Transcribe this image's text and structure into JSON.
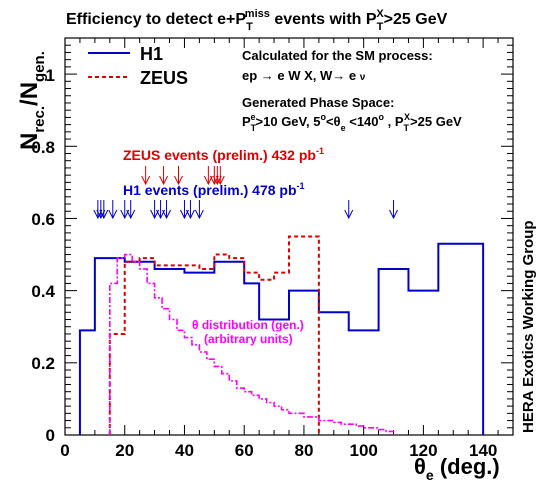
{
  "chart_data": {
    "type": "histogram",
    "title": {
      "pre": "Efficiency to detect e+P",
      "pre_sub": "T",
      "pre_sup": "miss",
      "mid": " events with P",
      "mid_sub": "T",
      "mid_sup": "X",
      "post": ">25 GeV"
    },
    "ylabel": {
      "main": "N",
      "sub1": "rec.",
      "slash": "/N",
      "sub2": "gen."
    },
    "xlabel": {
      "main": "θ",
      "sub": "e",
      "unit": " (deg.)"
    },
    "xlim": [
      0,
      150
    ],
    "ylim": [
      0,
      1.1
    ],
    "x_ticks": [
      "0",
      "20",
      "40",
      "60",
      "80",
      "100",
      "120",
      "140"
    ],
    "y_ticks": [
      "0",
      "0.2",
      "0.4",
      "0.6",
      "0.8",
      "1"
    ],
    "legend": [
      {
        "name": "H1",
        "color": "#0000cc",
        "style": "solid"
      },
      {
        "name": "ZEUS",
        "color": "#dd0000",
        "style": "dashed"
      }
    ],
    "info": {
      "line1": "Calculated for the SM process:",
      "line2": "ep → e W X, W→ e ν",
      "line3": "Generated Phase Space:",
      "line4": "P_T^e>10 GeV, 5°<θ_e<140°, P_T^X>25 GeV"
    },
    "side_label": "HERA Exotics Working Group",
    "annotations": {
      "zeus_events": "ZEUS events (prelim.) 432 pb",
      "zeus_events_sup": "-1",
      "h1_events": "H1 events (prelim.) 478 pb",
      "h1_events_sup": "-1",
      "theta_dist_1": "θ distribution (gen.)",
      "theta_dist_2": "(arbitrary units)"
    },
    "series": [
      {
        "name": "H1",
        "color": "#0000cc",
        "bins": [
          [
            5,
            10,
            0.29
          ],
          [
            10,
            20,
            0.49
          ],
          [
            20,
            30,
            0.48
          ],
          [
            30,
            40,
            0.46
          ],
          [
            40,
            50,
            0.45
          ],
          [
            50,
            60,
            0.48
          ],
          [
            60,
            65,
            0.42
          ],
          [
            65,
            75,
            0.32
          ],
          [
            75,
            85,
            0.4
          ],
          [
            85,
            95,
            0.34
          ],
          [
            95,
            105,
            0.29
          ],
          [
            105,
            115,
            0.46
          ],
          [
            115,
            125,
            0.4
          ],
          [
            125,
            135,
            0.53
          ],
          [
            135,
            140,
            0.53
          ]
        ]
      },
      {
        "name": "ZEUS",
        "color": "#dd0000",
        "bins": [
          [
            15,
            20,
            0.28
          ],
          [
            20,
            25,
            0.48
          ],
          [
            25,
            30,
            0.49
          ],
          [
            30,
            35,
            0.47
          ],
          [
            35,
            40,
            0.47
          ],
          [
            40,
            45,
            0.47
          ],
          [
            45,
            50,
            0.46
          ],
          [
            50,
            55,
            0.5
          ],
          [
            55,
            60,
            0.49
          ],
          [
            60,
            65,
            0.45
          ],
          [
            65,
            70,
            0.43
          ],
          [
            70,
            75,
            0.45
          ],
          [
            75,
            80,
            0.55
          ],
          [
            80,
            85,
            0.55
          ]
        ]
      },
      {
        "name": "θ distribution (gen.)",
        "color": "#ff00ff",
        "bins": [
          [
            15,
            17.5,
            0.42
          ],
          [
            17.5,
            20,
            0.49
          ],
          [
            20,
            22.5,
            0.5
          ],
          [
            22.5,
            25,
            0.48
          ],
          [
            25,
            27.5,
            0.46
          ],
          [
            27.5,
            30,
            0.42
          ],
          [
            30,
            32.5,
            0.38
          ],
          [
            32.5,
            35,
            0.35
          ],
          [
            35,
            37.5,
            0.32
          ],
          [
            37.5,
            40,
            0.29
          ],
          [
            40,
            42.5,
            0.27
          ],
          [
            42.5,
            45,
            0.25
          ],
          [
            45,
            47.5,
            0.23
          ],
          [
            47.5,
            50,
            0.21
          ],
          [
            50,
            52.5,
            0.19
          ],
          [
            52.5,
            55,
            0.17
          ],
          [
            55,
            57.5,
            0.15
          ],
          [
            57.5,
            60,
            0.13
          ],
          [
            60,
            62.5,
            0.12
          ],
          [
            62.5,
            65,
            0.11
          ],
          [
            65,
            67.5,
            0.1
          ],
          [
            67.5,
            70,
            0.09
          ],
          [
            70,
            72.5,
            0.08
          ],
          [
            72.5,
            75,
            0.07
          ],
          [
            75,
            77.5,
            0.06
          ],
          [
            77.5,
            80,
            0.06
          ],
          [
            80,
            82.5,
            0.05
          ],
          [
            82.5,
            85,
            0.05
          ],
          [
            85,
            87.5,
            0.04
          ],
          [
            87.5,
            90,
            0.04
          ],
          [
            90,
            92.5,
            0.035
          ],
          [
            92.5,
            95,
            0.03
          ],
          [
            95,
            97.5,
            0.03
          ],
          [
            97.5,
            100,
            0.025
          ],
          [
            100,
            102.5,
            0.02
          ],
          [
            102.5,
            105,
            0.02
          ],
          [
            105,
            107.5,
            0.015
          ],
          [
            107.5,
            110,
            0.01
          ]
        ]
      }
    ],
    "zeus_event_arrows": [
      27,
      33,
      38,
      48,
      50,
      51,
      52
    ],
    "h1_event_arrows": [
      11,
      12,
      13,
      16,
      20,
      22,
      30,
      32,
      34,
      40,
      42,
      45,
      95,
      110
    ]
  }
}
